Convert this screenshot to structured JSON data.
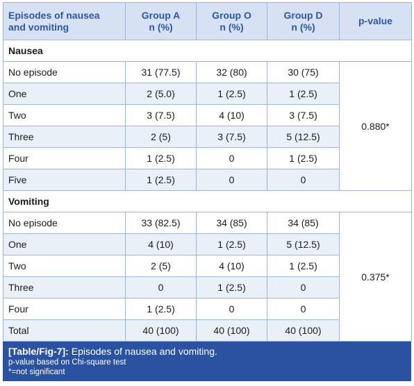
{
  "table": {
    "headers": [
      "Episodes of nausea and vomiting",
      "Group A n (%)",
      "Group O n (%)",
      "Group D n (%)",
      "p-value"
    ],
    "header_lines": [
      [
        "Episodes of nausea",
        "and vomiting"
      ],
      [
        "Group A",
        "n (%)"
      ],
      [
        "Group O",
        "n (%)"
      ],
      [
        "Group D",
        "n (%)"
      ],
      [
        "p-value"
      ]
    ],
    "sections": [
      {
        "title": "Nausea",
        "p_value": "0.880*",
        "rows": [
          {
            "label": "No episode",
            "a": "31 (77.5)",
            "o": "32 (80)",
            "d": "30 (75)"
          },
          {
            "label": "One",
            "a": "2 (5.0)",
            "o": "1 (2.5)",
            "d": "1 (2.5)"
          },
          {
            "label": "Two",
            "a": "3 (7.5)",
            "o": "4 (10)",
            "d": "3 (7.5)"
          },
          {
            "label": "Three",
            "a": "2 (5)",
            "o": "3 (7.5)",
            "d": "5 (12.5)"
          },
          {
            "label": "Four",
            "a": "1 (2.5)",
            "o": "0",
            "d": "1 (2.5)"
          },
          {
            "label": "Five",
            "a": "1 (2.5)",
            "o": "0",
            "d": "0"
          }
        ]
      },
      {
        "title": "Vomiting",
        "p_value": "0.375*",
        "rows": [
          {
            "label": "No episode",
            "a": "33 (82.5)",
            "o": "34 (85)",
            "d": "34 (85)"
          },
          {
            "label": "One",
            "a": "4 (10)",
            "o": "1 (2.5)",
            "d": "5 (12.5)"
          },
          {
            "label": "Two",
            "a": "2 (5)",
            "o": "4 (10)",
            "d": "1 (2.5)"
          },
          {
            "label": "Three",
            "a": "0",
            "o": "1 (2.5)",
            "d": "0"
          },
          {
            "label": "Four",
            "a": "1 (2.5)",
            "o": "0",
            "d": "0"
          },
          {
            "label": "Total",
            "a": "40 (100)",
            "o": "40 (100)",
            "d": "40 (100)"
          }
        ]
      }
    ]
  },
  "caption": {
    "tag": "[Table/Fig-7]:",
    "title": "Episodes of nausea and vomiting.",
    "notes": [
      "p-value based on Chi-square test",
      "*=not significant"
    ]
  },
  "colors": {
    "header_bg": "#d6e1f3",
    "header_text": "#2e56a3",
    "alt_row_bg": "#eaf0f8",
    "border": "#9fb3d8",
    "caption_bg": "#2b52a0"
  }
}
